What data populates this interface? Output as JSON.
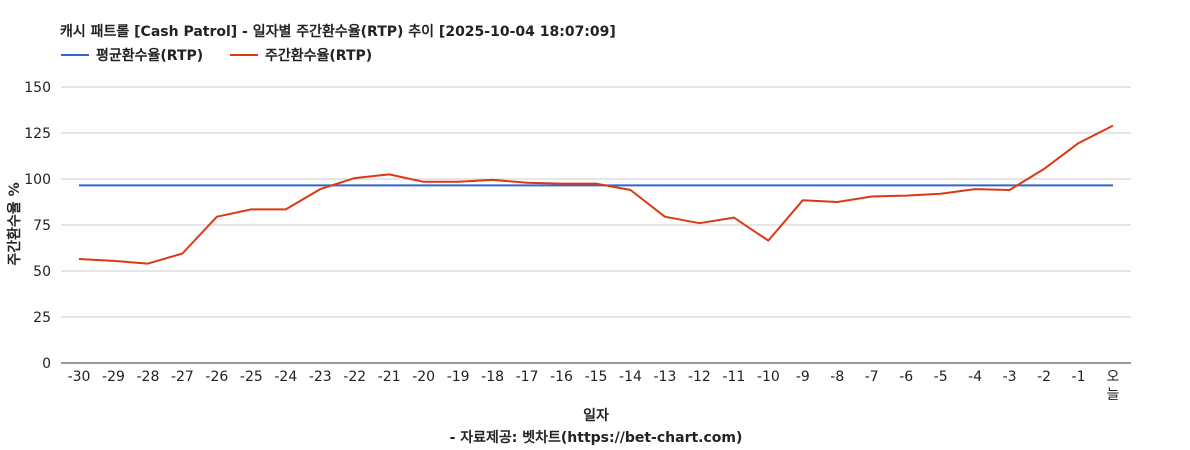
{
  "chart_data": {
    "type": "line",
    "title": "캐시 패트롤 [Cash Patrol] - 일자별 주간환수율(RTP) 추이 [2025-10-04 18:07:09]",
    "xlabel": "일자",
    "ylabel": "주간환수율 %",
    "source": "- 자료제공: 벳차트(https://bet-chart.com)",
    "ylim": [
      0,
      150
    ],
    "yticks": [
      0,
      25,
      50,
      75,
      100,
      125,
      150
    ],
    "grid": true,
    "legend_position": "top-left",
    "categories": [
      "-30",
      "-29",
      "-28",
      "-27",
      "-26",
      "-25",
      "-24",
      "-23",
      "-22",
      "-21",
      "-20",
      "-19",
      "-18",
      "-17",
      "-16",
      "-15",
      "-14",
      "-13",
      "-12",
      "-11",
      "-10",
      "-9",
      "-8",
      "-7",
      "-6",
      "-5",
      "-4",
      "-3",
      "-2",
      "-1",
      "오늘"
    ],
    "series": [
      {
        "name": "평균환수율(RTP)",
        "color": "#3366cc",
        "values": [
          96.5,
          96.5,
          96.5,
          96.5,
          96.5,
          96.5,
          96.5,
          96.5,
          96.5,
          96.5,
          96.5,
          96.5,
          96.5,
          96.5,
          96.5,
          96.5,
          96.5,
          96.5,
          96.5,
          96.5,
          96.5,
          96.5,
          96.5,
          96.5,
          96.5,
          96.5,
          96.5,
          96.5,
          96.5,
          96.5,
          96.5
        ]
      },
      {
        "name": "주간환수율(RTP)",
        "color": "#dc3912",
        "values": [
          56.5,
          55.5,
          54,
          59.5,
          79.5,
          83.5,
          83.5,
          94.5,
          100.5,
          102.5,
          98.5,
          98.5,
          99.5,
          98,
          97.5,
          97.5,
          94,
          79.5,
          76,
          79,
          66.5,
          88.5,
          87.5,
          90.5,
          91,
          92,
          94.5,
          94,
          105.5,
          119.5,
          129
        ]
      }
    ]
  }
}
